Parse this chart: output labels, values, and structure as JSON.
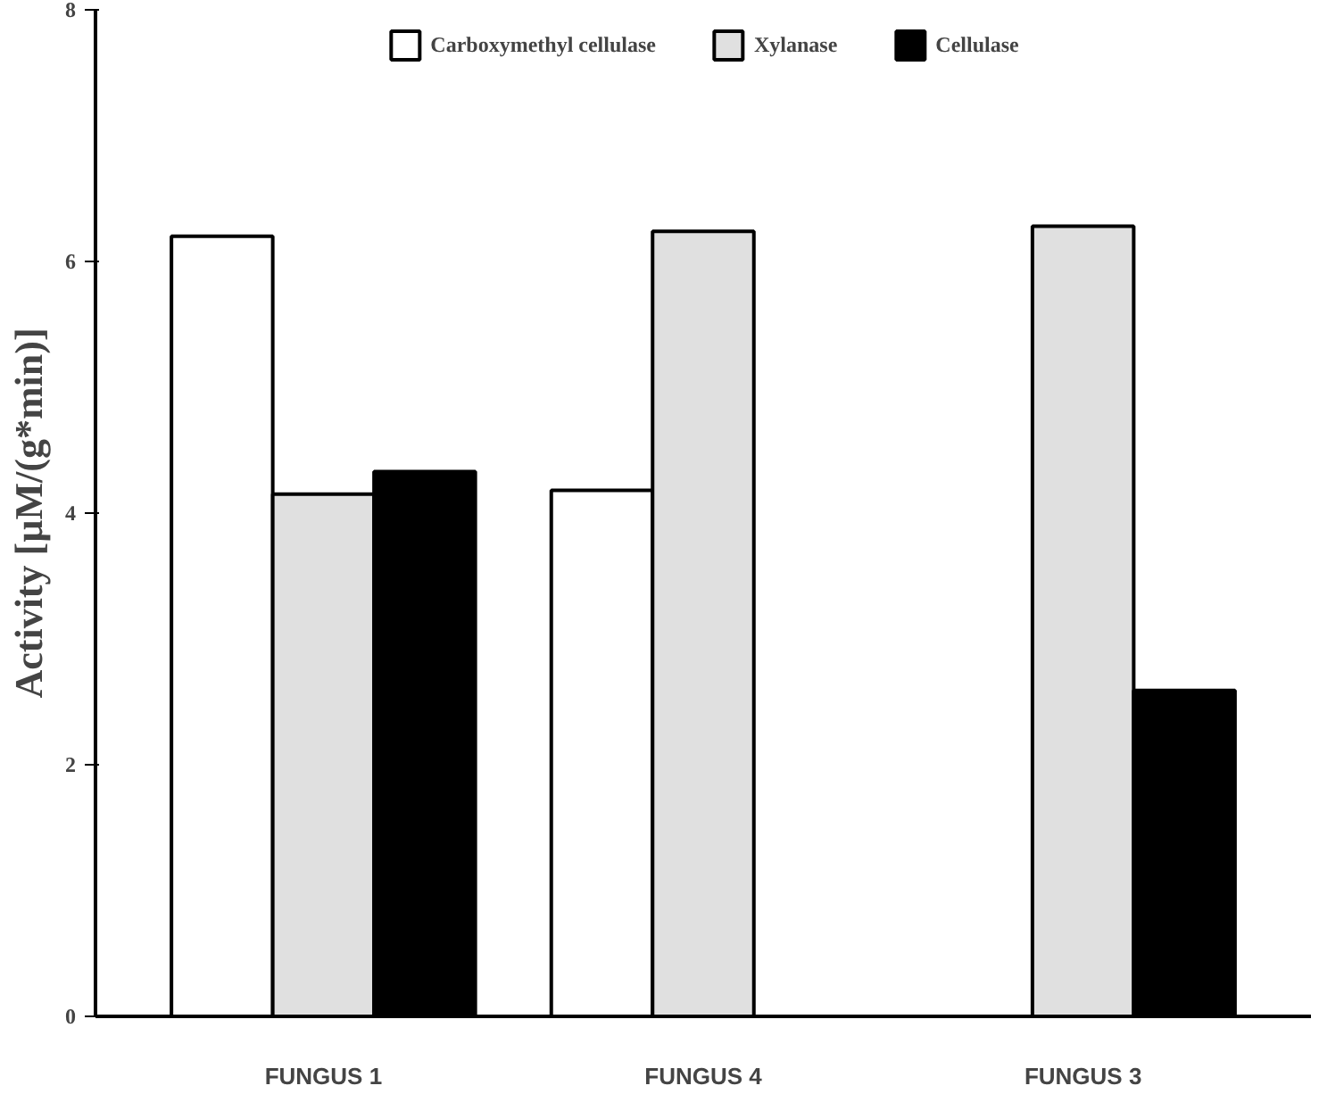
{
  "chart_data": {
    "type": "bar",
    "ylabel": "Activity [µM/(g*min)]",
    "categories": [
      "FUNGUS 1",
      "FUNGUS 4",
      "FUNGUS 3"
    ],
    "series": [
      {
        "name": "Carboxymethyl cellulase",
        "color": "#ffffff",
        "values": [
          6.2,
          4.18,
          null
        ]
      },
      {
        "name": "Xylanase",
        "color": "#e0e0e0",
        "values": [
          4.15,
          6.24,
          6.28
        ]
      },
      {
        "name": "Cellulase",
        "color": "#000000",
        "values": [
          4.33,
          null,
          2.59
        ]
      }
    ],
    "ylim": [
      0,
      8
    ],
    "yticks": [
      0,
      2,
      4,
      6,
      8
    ],
    "grid": false,
    "legend": "top"
  }
}
